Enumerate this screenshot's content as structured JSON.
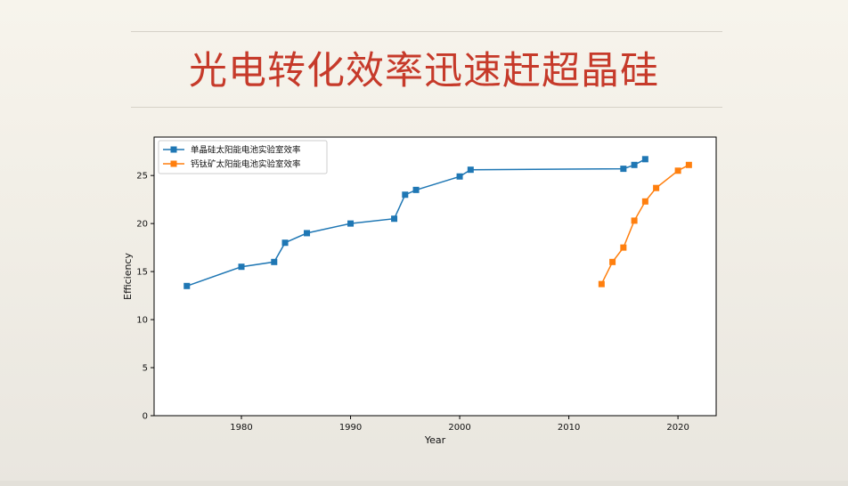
{
  "slide": {
    "title": "光电转化效率迅速赶超晶硅"
  },
  "chart_data": {
    "type": "line",
    "xlabel": "Year",
    "ylabel": "Efficiency",
    "xlim": [
      1972,
      2023.5
    ],
    "ylim": [
      0,
      29
    ],
    "xticks": [
      1980,
      1990,
      2000,
      2010,
      2020
    ],
    "yticks": [
      0,
      5,
      10,
      15,
      20,
      25
    ],
    "legend_position": "top-left",
    "grid": false,
    "series": [
      {
        "name": "单晶硅太阳能电池实验室效率",
        "color": "#1f77b4",
        "x": [
          1975,
          1980,
          1983,
          1984,
          1986,
          1990,
          1994,
          1995,
          1996,
          2000,
          2001,
          2015,
          2016,
          2017
        ],
        "y": [
          13.5,
          15.5,
          16.0,
          18.0,
          19.0,
          20.0,
          20.5,
          23.0,
          23.5,
          24.9,
          25.6,
          25.7,
          26.1,
          26.7
        ]
      },
      {
        "name": "钙钛矿太阳能电池实验室效率",
        "color": "#ff7f0e",
        "x": [
          2013,
          2014,
          2015,
          2016,
          2017,
          2018,
          2020,
          2021
        ],
        "y": [
          13.7,
          16.0,
          17.5,
          20.3,
          22.3,
          23.7,
          25.5,
          26.1
        ]
      }
    ]
  }
}
